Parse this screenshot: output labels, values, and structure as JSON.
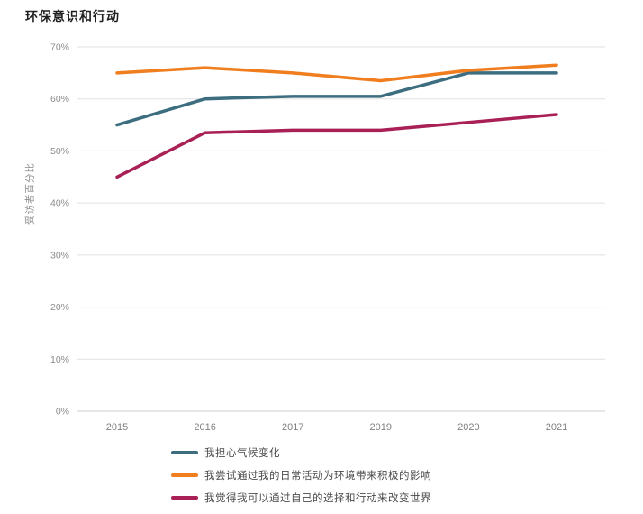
{
  "page": {
    "background": "#ffffff"
  },
  "chart_data": {
    "type": "line",
    "title": "环保意识和行动",
    "xlabel": "",
    "ylabel": "受访者百分比",
    "categories": [
      "2015",
      "2016",
      "2017",
      "2019",
      "2020",
      "2021"
    ],
    "series": [
      {
        "name": "我担心气候变化",
        "color": "#3c6e80",
        "values": [
          55,
          60,
          60.5,
          60.5,
          65,
          65
        ]
      },
      {
        "name": "我尝试通过我的日常活动为环境带来积极的影响",
        "color": "#f07d1e",
        "values": [
          65,
          66,
          65,
          63.5,
          65.5,
          66.5
        ]
      },
      {
        "name": "我觉得我可以通过自己的选择和行动来改变世界",
        "color": "#a82055",
        "values": [
          45,
          53.5,
          54,
          54,
          55.5,
          57
        ]
      }
    ],
    "ylim": [
      0,
      70
    ],
    "ytick_values": [
      0,
      10,
      20,
      30,
      40,
      50,
      60,
      70
    ],
    "ytick_labels": [
      "0%",
      "10%",
      "20%",
      "30%",
      "40%",
      "50%",
      "60%",
      "70%"
    ],
    "grid": "horizontal",
    "legend_position": "bottom-left"
  },
  "style": {
    "grid_color": "#e0e0e0",
    "baseline_color": "#cfcfcf",
    "line_width": 3.5
  }
}
